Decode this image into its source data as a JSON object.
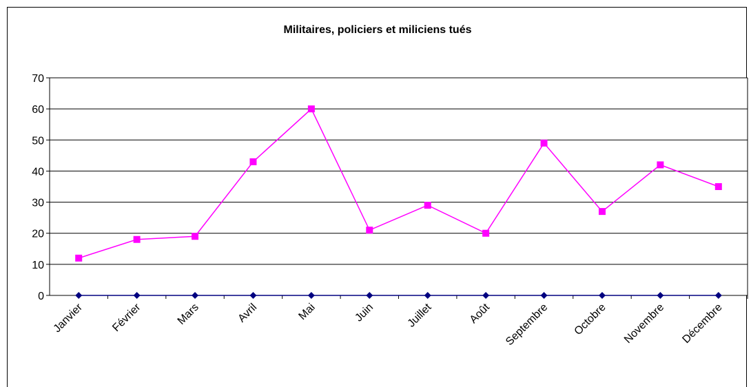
{
  "chart_data": {
    "type": "line",
    "title": "Militaires, policiers et miliciens tués",
    "categories": [
      "Janvier",
      "Février",
      "Mars",
      "Avril",
      "Mai",
      "Juin",
      "Juillet",
      "Août",
      "Septembre",
      "Octobre",
      "Novembre",
      "Décembre"
    ],
    "series": [
      {
        "color": "#000080",
        "marker": "diamond",
        "values": [
          0,
          0,
          0,
          0,
          0,
          0,
          0,
          0,
          0,
          0,
          0,
          0
        ]
      },
      {
        "color": "#ff00ff",
        "marker": "square",
        "values": [
          12,
          18,
          19,
          43,
          60,
          21,
          29,
          20,
          49,
          27,
          42,
          35
        ]
      }
    ],
    "ylim": [
      0,
      70
    ],
    "yticks": [
      0,
      10,
      20,
      30,
      40,
      50,
      60,
      70
    ],
    "grid": true
  }
}
